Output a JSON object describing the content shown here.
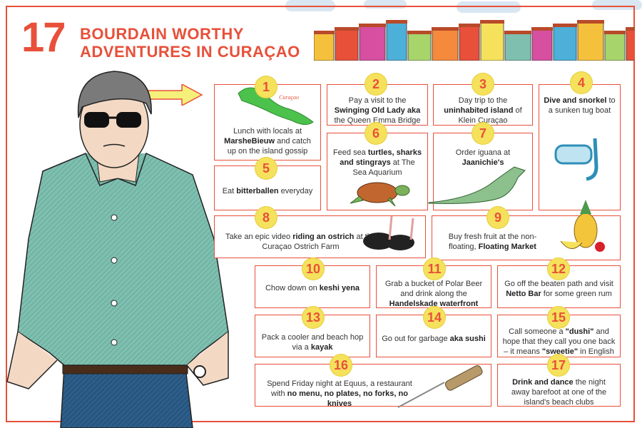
{
  "title": {
    "number": "17",
    "line1": "BOURDAIN WORTHY",
    "line2": "ADVENTURES IN CURAÇAO"
  },
  "map_label": "Curaçao",
  "colors": {
    "accent": "#e8503a",
    "badge": "#f5e15c",
    "shirt": "#7fbfb0",
    "map": "#4cc24c",
    "arrow": "#f5f07a"
  },
  "items": [
    {
      "num": "1",
      "pre": "Lunch with locals at ",
      "bold": "MarsheBieuw",
      "post": " and catch up on the island gossip"
    },
    {
      "num": "2",
      "pre": "Pay a visit to the ",
      "bold": "Swinging Old Lady aka",
      "post": " the Queen Emma Bridge"
    },
    {
      "num": "3",
      "pre": "Day trip to the ",
      "bold": "uninhabited island",
      "post": " of Klein Curaçao"
    },
    {
      "num": "4",
      "pre": "",
      "bold": "Dive and snorkel",
      "post": " to a sunken tug boat"
    },
    {
      "num": "5",
      "pre": "Eat ",
      "bold": "bitterballen",
      "post": " everyday"
    },
    {
      "num": "6",
      "pre": "Feed sea ",
      "bold": "turtles, sharks and stingrays",
      "post": " at The Sea Aquarium"
    },
    {
      "num": "7",
      "pre": "Order iguana at ",
      "bold": "Jaanichie's",
      "post": ""
    },
    {
      "num": "8",
      "pre": "Take an epic video ",
      "bold": "riding an ostrich",
      "post": " at the Curaçao Ostrich Farm"
    },
    {
      "num": "9",
      "pre": "Buy fresh fruit at the non-floating, ",
      "bold": "Floating Market",
      "post": ""
    },
    {
      "num": "10",
      "pre": "Chow down on ",
      "bold": "keshi yena",
      "post": ""
    },
    {
      "num": "11",
      "pre": "Grab a bucket of Polar Beer and drink along the ",
      "bold": "Handelskade waterfront",
      "post": ""
    },
    {
      "num": "12",
      "pre": "Go off the beaten path and visit ",
      "bold": "Netto Bar",
      "post": " for some green rum"
    },
    {
      "num": "13",
      "pre": "Pack a cooler and beach hop via a ",
      "bold": "kayak",
      "post": ""
    },
    {
      "num": "14",
      "pre": "Go out for garbage ",
      "bold": "aka sushi",
      "post": ""
    },
    {
      "num": "15",
      "pre": "Call someone a ",
      "bold": "\"dushi\"",
      "post": " and hope that they call you one back – it means ",
      "bold2": "\"sweetie\"",
      "post2": " in English"
    },
    {
      "num": "16",
      "pre": "Spend Friday night at Equus, a restaurant with ",
      "bold": "no menu, no plates, no forks, no knives",
      "post": ""
    },
    {
      "num": "17",
      "pre": "",
      "bold": "Drink and dance",
      "post": " the night away barefoot at one of the island's beach clubs"
    }
  ]
}
